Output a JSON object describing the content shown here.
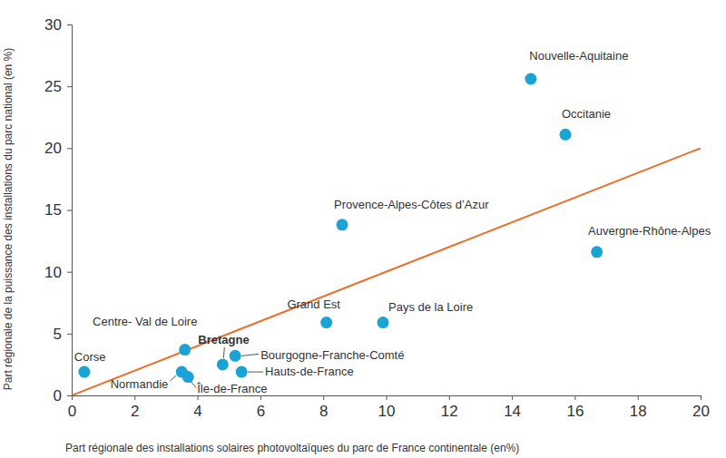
{
  "chart_data": {
    "type": "scatter",
    "x_label": "Part régionale des installations solaires photovoltaïques du parc de France continentale (en%)",
    "y_label": "Part régionale de la puissance des installations du parc national (en %)",
    "labels": [
      "Corse",
      "Normandie",
      "Île-de-France",
      "Centre- Val de Loire",
      "Bretagne",
      "Bourgogne-Franche-Comté",
      "Hauts-de-France",
      "Grand Est",
      "Pays de la Loire",
      "Provence-Alpes-Côtes d’Azur",
      "Nouvelle-Aquitaine",
      "Occitanie",
      "Auvergne-Rhône-Alpes"
    ],
    "x": [
      0.4,
      3.5,
      3.7,
      3.6,
      4.8,
      5.2,
      5.4,
      8.1,
      9.9,
      8.6,
      14.6,
      15.7,
      16.7
    ],
    "values": [
      1.9,
      1.9,
      1.5,
      3.7,
      2.5,
      3.2,
      1.9,
      5.9,
      5.9,
      13.8,
      25.6,
      21.1,
      11.6
    ],
    "color": "#1ba3d3",
    "marker": "circle",
    "reference_line": {
      "x": [
        0,
        20
      ],
      "y": [
        0,
        20
      ],
      "color": "#e8702a"
    },
    "xlim": [
      0,
      20
    ],
    "xticks": [
      0,
      2,
      4,
      6,
      8,
      10,
      12,
      14,
      16,
      18,
      20
    ],
    "ylim": [
      0,
      30
    ],
    "yticks": [
      0,
      5,
      10,
      15,
      20,
      25,
      30
    ],
    "grid": false
  }
}
